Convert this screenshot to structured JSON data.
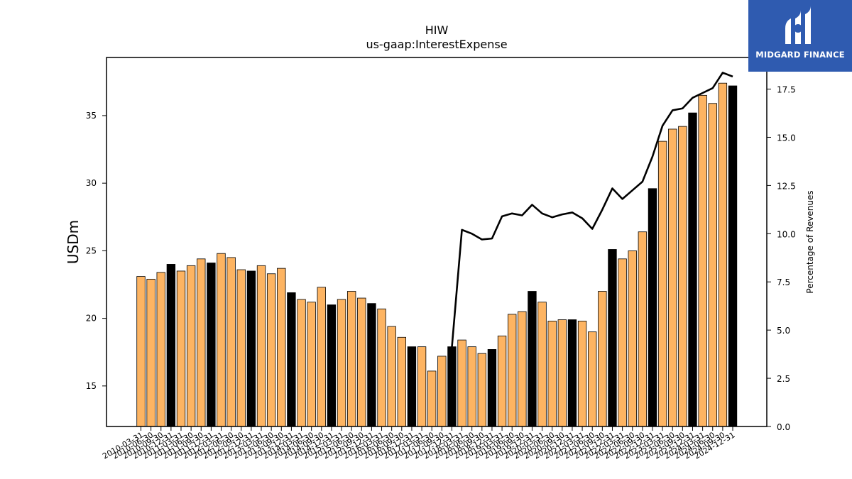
{
  "chart_data": {
    "type": "bar",
    "title": "HIW",
    "subtitle": "us-gaap:InterestExpense",
    "ylabel": "USDm",
    "y2label": "Percentage of Revenues",
    "ylim": [
      12.0,
      39.3
    ],
    "y2lim": [
      0.0,
      19.14
    ],
    "yticks": [
      15,
      20,
      25,
      30,
      35
    ],
    "y2ticks": [
      "0.0",
      "2.5",
      "5.0",
      "7.5",
      "10.0",
      "12.5",
      "15.0",
      "17.5"
    ],
    "categories": [
      "2010-03-31",
      "2010-06-30",
      "2010-09-30",
      "2010-12-31",
      "2011-03-31",
      "2011-06-30",
      "2011-09-30",
      "2011-12-31",
      "2012-03-31",
      "2012-06-30",
      "2012-09-30",
      "2012-12-31",
      "2013-03-31",
      "2013-06-30",
      "2013-09-30",
      "2013-12-31",
      "2014-03-31",
      "2014-06-30",
      "2014-09-30",
      "2014-12-31",
      "2015-03-31",
      "2015-06-30",
      "2015-09-30",
      "2015-12-31",
      "2016-03-31",
      "2016-06-30",
      "2016-09-30",
      "2016-12-31",
      "2017-03-31",
      "2017-06-30",
      "2017-09-30",
      "2017-12-31",
      "2018-03-31",
      "2018-06-30",
      "2018-09-30",
      "2018-12-31",
      "2019-03-31",
      "2019-06-30",
      "2019-09-30",
      "2019-12-31",
      "2020-03-31",
      "2020-06-30",
      "2020-09-30",
      "2020-12-31",
      "2021-03-31",
      "2021-06-30",
      "2021-09-30",
      "2021-12-31",
      "2022-03-31",
      "2022-06-30",
      "2022-09-30",
      "2022-12-31",
      "2023-03-31",
      "2023-06-30",
      "2023-09-30",
      "2023-12-31",
      "2024-03-31",
      "2024-06-30",
      "2024-09-30",
      "2024-12-31"
    ],
    "values": [
      23.1,
      22.9,
      23.4,
      24.0,
      23.5,
      23.9,
      24.4,
      24.1,
      24.8,
      24.5,
      23.6,
      23.5,
      23.9,
      23.3,
      23.7,
      21.9,
      21.4,
      21.2,
      22.3,
      21.0,
      21.4,
      22.0,
      21.5,
      21.1,
      20.7,
      19.4,
      18.6,
      17.9,
      17.9,
      16.1,
      17.2,
      17.9,
      18.4,
      17.9,
      17.4,
      17.7,
      18.7,
      20.3,
      20.5,
      22.0,
      21.2,
      19.8,
      19.9,
      19.9,
      19.8,
      19.0,
      22.0,
      25.1,
      24.4,
      25.0,
      26.4,
      29.6,
      33.1,
      34.0,
      34.2,
      35.2,
      36.5,
      35.9,
      37.4,
      37.2
    ],
    "highlight_color": "#000000",
    "bar_color": "#fdb462",
    "highlighted": [
      false,
      false,
      false,
      true,
      false,
      false,
      false,
      true,
      false,
      false,
      false,
      true,
      false,
      false,
      false,
      true,
      false,
      false,
      false,
      true,
      false,
      false,
      false,
      true,
      false,
      false,
      false,
      true,
      false,
      false,
      false,
      true,
      false,
      false,
      false,
      true,
      false,
      false,
      false,
      true,
      false,
      false,
      false,
      true,
      false,
      false,
      false,
      true,
      false,
      false,
      false,
      true,
      false,
      false,
      false,
      true,
      false,
      false,
      false,
      true
    ],
    "line_series": {
      "axis": "right",
      "color": "#000000",
      "values": [
        null,
        null,
        null,
        null,
        null,
        null,
        null,
        null,
        null,
        null,
        null,
        null,
        null,
        null,
        null,
        null,
        null,
        null,
        null,
        null,
        null,
        null,
        null,
        null,
        null,
        null,
        null,
        null,
        null,
        null,
        null,
        4.1,
        10.2,
        10.0,
        9.7,
        9.75,
        10.9,
        11.05,
        10.95,
        11.5,
        11.05,
        10.85,
        11.0,
        11.1,
        10.8,
        10.25,
        11.25,
        12.35,
        11.8,
        12.25,
        12.7,
        14.0,
        15.6,
        16.4,
        16.5,
        17.05,
        17.3,
        17.55,
        18.35,
        18.15
      ]
    }
  },
  "logo": {
    "name": "MIDGARD FINANCE",
    "bg_color": "#2f5bb0"
  }
}
